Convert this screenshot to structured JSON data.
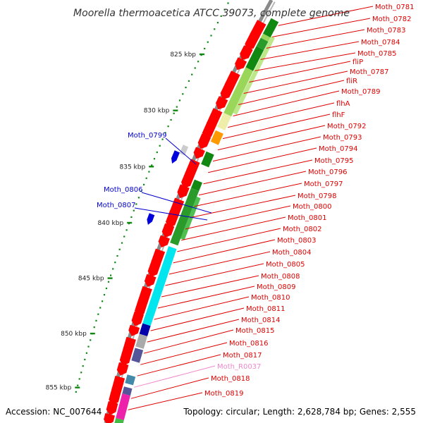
{
  "title": "Moorella thermoacetica ATCC 39073, complete genome",
  "footer": {
    "accession": "Accession: NC_007644",
    "topology": "Topology: circular; Length: 2,628,784 bp; Genes: 2,555"
  },
  "kbp_labels": [
    "825 kbp",
    "830 kbp",
    "835 kbp",
    "840 kbp",
    "845 kbp",
    "850 kbp",
    "855 kbp"
  ],
  "colors": {
    "cds": "#ff0000",
    "label_red": "#dd0000",
    "label_blue": "#0000cc",
    "label_pink": "#ee88cc",
    "backbone": "#8a8a8a",
    "tick_green": "#118811"
  },
  "right_labels": [
    {
      "text": "Moth_0781",
      "color": "red"
    },
    {
      "text": "Moth_0782",
      "color": "red"
    },
    {
      "text": "Moth_0783",
      "color": "red"
    },
    {
      "text": "Moth_0784",
      "color": "red"
    },
    {
      "text": "Moth_0785",
      "color": "red"
    },
    {
      "text": "fliP",
      "color": "red"
    },
    {
      "text": "Moth_0787",
      "color": "red"
    },
    {
      "text": "fliR",
      "color": "red"
    },
    {
      "text": "Moth_0789",
      "color": "red"
    },
    {
      "text": "flhA",
      "color": "red"
    },
    {
      "text": "flhF",
      "color": "red"
    },
    {
      "text": "Moth_0792",
      "color": "red"
    },
    {
      "text": "Moth_0793",
      "color": "red"
    },
    {
      "text": "Moth_0794",
      "color": "red"
    },
    {
      "text": "Moth_0795",
      "color": "red"
    },
    {
      "text": "Moth_0796",
      "color": "red"
    },
    {
      "text": "Moth_0797",
      "color": "red"
    },
    {
      "text": "Moth_0798",
      "color": "red"
    },
    {
      "text": "Moth_0800",
      "color": "red"
    },
    {
      "text": "Moth_0801",
      "color": "red"
    },
    {
      "text": "Moth_0802",
      "color": "red"
    },
    {
      "text": "Moth_0803",
      "color": "red"
    },
    {
      "text": "Moth_0804",
      "color": "red"
    },
    {
      "text": "Moth_0805",
      "color": "red"
    },
    {
      "text": "Moth_0808",
      "color": "red"
    },
    {
      "text": "Moth_0809",
      "color": "red"
    },
    {
      "text": "Moth_0810",
      "color": "red"
    },
    {
      "text": "Moth_0811",
      "color": "red"
    },
    {
      "text": "Moth_0814",
      "color": "red"
    },
    {
      "text": "Moth_0815",
      "color": "red"
    },
    {
      "text": "Moth_0816",
      "color": "red"
    },
    {
      "text": "Moth_0817",
      "color": "red"
    },
    {
      "text": "Moth_R0037",
      "color": "pink"
    },
    {
      "text": "Moth_0818",
      "color": "red"
    },
    {
      "text": "Moth_0819",
      "color": "red"
    }
  ],
  "left_labels": [
    {
      "text": "Moth_0799",
      "color": "blue"
    },
    {
      "text": "Moth_0806",
      "color": "blue"
    },
    {
      "text": "Moth_0807",
      "color": "blue"
    }
  ]
}
